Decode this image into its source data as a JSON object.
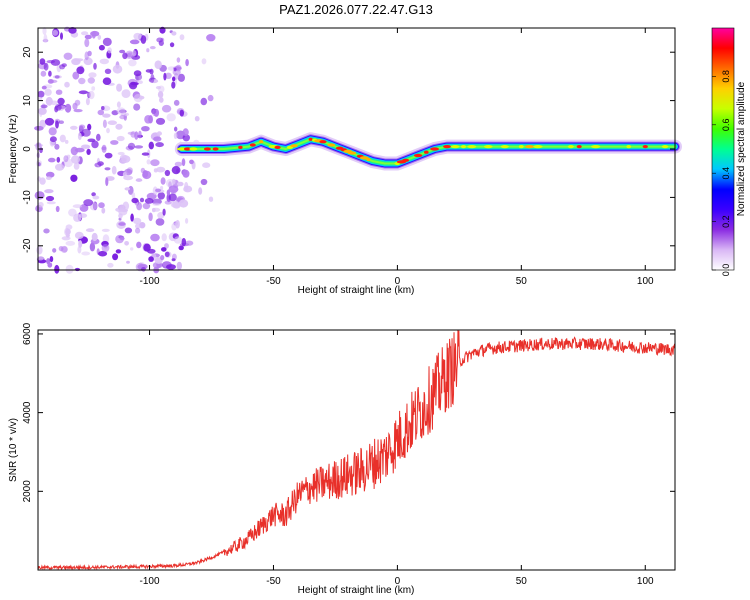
{
  "title": "PAZ1.2026.077.22.47.G13",
  "chart_data": [
    {
      "type": "heatmap",
      "name": "spectrogram",
      "xlabel": "Height of straight line (km)",
      "ylabel": "Frequency (Hz)",
      "xlim": [
        -145,
        112
      ],
      "ylim": [
        -25,
        25
      ],
      "xticks": [
        -100,
        -50,
        0,
        50,
        100
      ],
      "yticks": [
        -20,
        -10,
        0,
        10,
        20
      ],
      "noise_region_x": [
        -145,
        -75
      ],
      "signal_start_x": -87,
      "ridge": {
        "x": [
          -87,
          -80,
          -70,
          -60,
          -55,
          -50,
          -45,
          -40,
          -35,
          -30,
          -25,
          -20,
          -15,
          -10,
          -5,
          0,
          5,
          10,
          15,
          20,
          30,
          40,
          50,
          60,
          70,
          80,
          90,
          100,
          112
        ],
        "frequency": [
          0,
          0,
          0,
          0.5,
          1.5,
          0.5,
          0,
          1,
          2,
          1.5,
          0.5,
          -0.5,
          -1.5,
          -2.5,
          -3,
          -3,
          -2,
          -1,
          0,
          0.5,
          0.5,
          0.5,
          0.5,
          0.5,
          0.5,
          0.5,
          0.5,
          0.5,
          0.5
        ]
      },
      "colorbar": {
        "label": "Normalized spectral amplitude",
        "range": [
          0,
          1
        ],
        "ticks": [
          "0.0",
          "0.2",
          "0.4",
          "0.6",
          "0.8"
        ],
        "tick_values": [
          0,
          0.2,
          0.4,
          0.6,
          0.8
        ],
        "colormap": [
          "#ffffff",
          "#d9b7f5",
          "#8a2be2",
          "#3a00ff",
          "#0000ff",
          "#00c8ff",
          "#00ff90",
          "#40ff00",
          "#c8ff00",
          "#ffd000",
          "#ff6a00",
          "#ff0000",
          "#ff00a0"
        ]
      }
    },
    {
      "type": "line",
      "name": "snr",
      "xlabel": "Height of straight line (km)",
      "ylabel": "SNR (10 * v/v)",
      "xlim": [
        -145,
        112
      ],
      "ylim": [
        0,
        6100
      ],
      "xticks": [
        -100,
        -50,
        0,
        50,
        100
      ],
      "yticks": [
        2000,
        4000,
        6000
      ],
      "color": "#e8302a",
      "series": [
        {
          "name": "SNR",
          "x": [
            -145,
            -120,
            -100,
            -90,
            -85,
            -80,
            -75,
            -70,
            -65,
            -60,
            -55,
            -50,
            -45,
            -40,
            -35,
            -30,
            -25,
            -20,
            -15,
            -10,
            -5,
            0,
            5,
            10,
            15,
            20,
            25,
            30,
            35,
            40,
            50,
            60,
            70,
            80,
            90,
            100,
            112
          ],
          "y": [
            60,
            70,
            90,
            110,
            140,
            200,
            320,
            450,
            600,
            800,
            1100,
            1400,
            1400,
            1900,
            2100,
            2200,
            2300,
            2400,
            2500,
            2700,
            2900,
            3300,
            3700,
            4100,
            4500,
            4950,
            5300,
            5500,
            5600,
            5650,
            5700,
            5750,
            5750,
            5750,
            5700,
            5650,
            5600
          ]
        }
      ]
    }
  ]
}
